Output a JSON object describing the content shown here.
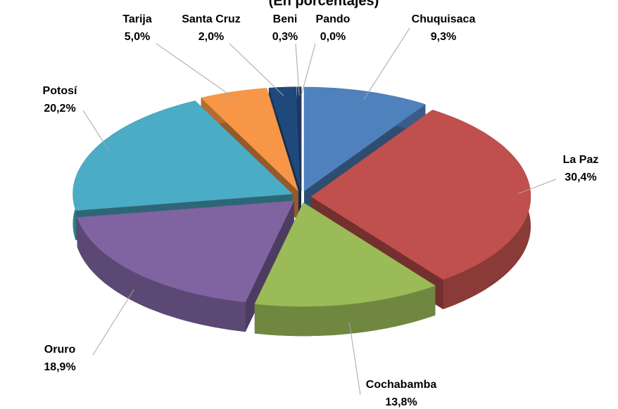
{
  "chart_data": {
    "type": "pie",
    "title": "(En porcentajes)",
    "categories": [
      "Chuquisaca",
      "La Paz",
      "Cochabamba",
      "Oruro",
      "Potosí",
      "Tarija",
      "Santa Cruz",
      "Beni",
      "Pando"
    ],
    "values": [
      9.3,
      30.4,
      13.8,
      18.9,
      20.2,
      5.0,
      2.0,
      0.3,
      0.0
    ],
    "value_labels": [
      "9,3%",
      "30,4%",
      "13,8%",
      "18,9%",
      "20,2%",
      "5,0%",
      "2,0%",
      "0,3%",
      "0,0%"
    ],
    "colors": [
      "#4f81bd",
      "#c0504d",
      "#9bbb59",
      "#8064a2",
      "#4bacc6",
      "#f79646",
      "#1f497d",
      "#1f3864",
      "#943634"
    ]
  }
}
